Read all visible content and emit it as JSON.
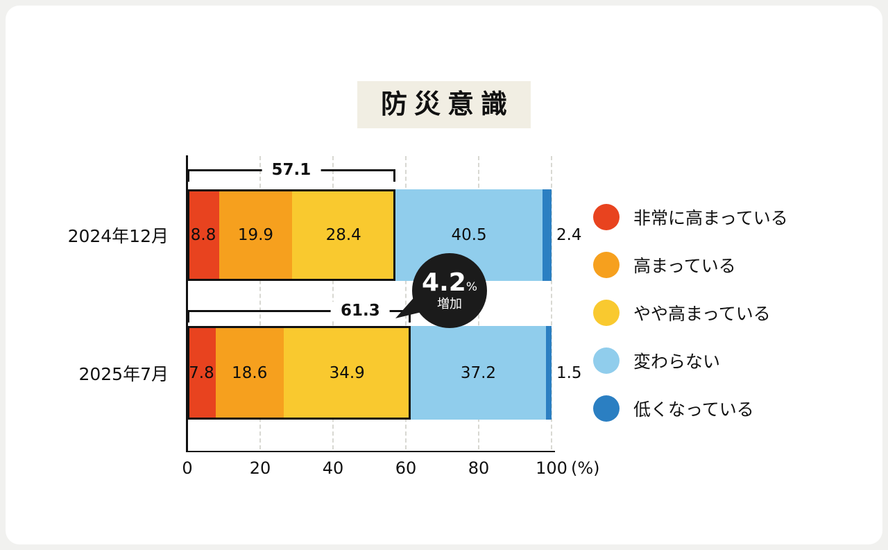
{
  "chart_data": {
    "type": "bar",
    "orientation": "horizontal",
    "stacked": true,
    "title": "防災意識",
    "categories": [
      "2024年12月",
      "2025年7月"
    ],
    "series": [
      {
        "name": "非常に高まっている",
        "color": "#e8431f",
        "values": [
          8.8,
          7.8
        ]
      },
      {
        "name": "高まっている",
        "color": "#f6a01e",
        "values": [
          19.9,
          18.6
        ]
      },
      {
        "name": "やや高まっている",
        "color": "#f9c92f",
        "values": [
          28.4,
          34.9
        ]
      },
      {
        "name": "変わらない",
        "color": "#90cdec",
        "values": [
          40.5,
          37.2
        ]
      },
      {
        "name": "低くなっている",
        "color": "#2b7fc2",
        "values": [
          2.4,
          1.5
        ]
      }
    ],
    "group_totals": [
      57.1,
      61.3
    ],
    "callout": {
      "value": "4.2",
      "unit": "%",
      "label": "増加"
    },
    "x_axis": {
      "ticks": [
        0,
        20,
        40,
        60,
        80,
        100
      ],
      "unit": "(%)",
      "min": 0,
      "max": 100
    },
    "legend_position": "right",
    "grid": "vertical-dashed"
  },
  "colors": {
    "background": "#f1f1ef",
    "card": "#ffffff",
    "title_box": "#f1eee3",
    "axis": "#111111",
    "gridline": "#d8d8d2",
    "callout_bg": "#1b1b1b"
  }
}
